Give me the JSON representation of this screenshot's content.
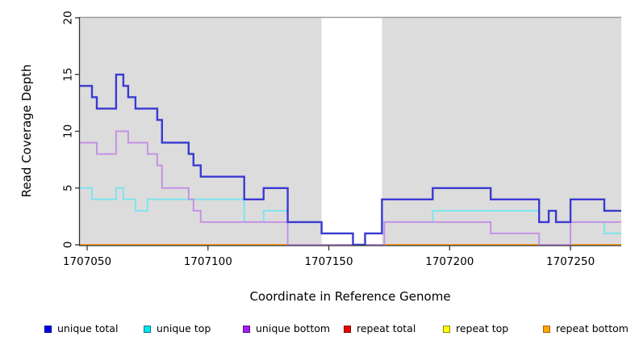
{
  "figure": {
    "x_axis_title": "Coordinate in Reference Genome",
    "y_axis_title": "Read Coverage Depth"
  },
  "chart_data": {
    "type": "line",
    "subtype": "step",
    "title": "",
    "xlabel": "Coordinate in Reference Genome",
    "ylabel": "Read Coverage Depth",
    "x_range": [
      1707047,
      1707271
    ],
    "y_range": [
      0,
      20
    ],
    "x_ticks": [
      1707050,
      1707100,
      1707150,
      1707200,
      1707250
    ],
    "x_tick_labels": [
      "1707050",
      "1707100",
      "1707150",
      "1707200",
      "1707250"
    ],
    "y_ticks": [
      0,
      5,
      10,
      15,
      20
    ],
    "y_tick_labels": [
      "0",
      "5",
      "10",
      "15",
      "20"
    ],
    "grid": false,
    "panel_bg": "#DCDCDC",
    "panel_top_edge_color": "#9E9E9E",
    "axis_color": "#333333",
    "highlight_band": {
      "x_start": 1707147,
      "x_end": 1707172,
      "color": "#FFFFFF"
    },
    "legend_position": "bottom",
    "draw_order": [
      3,
      4,
      5,
      1,
      2,
      0
    ],
    "series": [
      {
        "name": "unique total",
        "line_color": "#3A3AD1",
        "legend_fill": "#0000EE",
        "legend_border": "#000080",
        "line_width": 2.4,
        "steps": [
          [
            1707047,
            14
          ],
          [
            1707052,
            13
          ],
          [
            1707054,
            12
          ],
          [
            1707062,
            15
          ],
          [
            1707065,
            14
          ],
          [
            1707067,
            13
          ],
          [
            1707070,
            12
          ],
          [
            1707079,
            11
          ],
          [
            1707081,
            9
          ],
          [
            1707092,
            8
          ],
          [
            1707094,
            7
          ],
          [
            1707097,
            6
          ],
          [
            1707115,
            4
          ],
          [
            1707123,
            5
          ],
          [
            1707133,
            2
          ],
          [
            1707147,
            1
          ],
          [
            1707160,
            0
          ],
          [
            1707165,
            1
          ],
          [
            1707172,
            4
          ],
          [
            1707193,
            5
          ],
          [
            1707217,
            4
          ],
          [
            1707237,
            2
          ],
          [
            1707241,
            3
          ],
          [
            1707244,
            2
          ],
          [
            1707250,
            4
          ],
          [
            1707264,
            3
          ]
        ]
      },
      {
        "name": "unique top",
        "line_color": "#7EE4EE",
        "legend_fill": "#00E5EE",
        "legend_border": "#007A85",
        "line_width": 2,
        "steps": [
          [
            1707047,
            5
          ],
          [
            1707052,
            4
          ],
          [
            1707062,
            5
          ],
          [
            1707065,
            4
          ],
          [
            1707070,
            3
          ],
          [
            1707075,
            4
          ],
          [
            1707115,
            2
          ],
          [
            1707123,
            3
          ],
          [
            1707133,
            2
          ],
          [
            1707147,
            1
          ],
          [
            1707160,
            0
          ],
          [
            1707165,
            1
          ],
          [
            1707172,
            2
          ],
          [
            1707193,
            3
          ],
          [
            1707237,
            2
          ],
          [
            1707241,
            3
          ],
          [
            1707244,
            2
          ],
          [
            1707264,
            1
          ]
        ]
      },
      {
        "name": "unique bottom",
        "line_color": "#C592E2",
        "legend_fill": "#A020F0",
        "legend_border": "#5E0D90",
        "line_width": 2,
        "steps": [
          [
            1707047,
            9
          ],
          [
            1707054,
            8
          ],
          [
            1707062,
            10
          ],
          [
            1707067,
            9
          ],
          [
            1707075,
            8
          ],
          [
            1707079,
            7
          ],
          [
            1707081,
            5
          ],
          [
            1707092,
            4
          ],
          [
            1707094,
            3
          ],
          [
            1707097,
            2
          ],
          [
            1707133,
            0
          ],
          [
            1707173,
            2
          ],
          [
            1707217,
            1
          ],
          [
            1707237,
            0
          ],
          [
            1707250,
            2
          ]
        ]
      },
      {
        "name": "repeat total",
        "line_color": "#DD2222",
        "legend_fill": "#EE0000",
        "legend_border": "#7A0000",
        "line_width": 2,
        "steps": [
          [
            1707047,
            0
          ]
        ]
      },
      {
        "name": "repeat top",
        "line_color": "#F5E626",
        "legend_fill": "#FFFF00",
        "legend_border": "#8B8B00",
        "line_width": 2,
        "steps": [
          [
            1707047,
            0
          ]
        ]
      },
      {
        "name": "repeat bottom",
        "line_color": "#FFA320",
        "legend_fill": "#FFA500",
        "legend_border": "#A66400",
        "line_width": 2,
        "steps": [
          [
            1707047,
            0
          ]
        ]
      }
    ]
  }
}
